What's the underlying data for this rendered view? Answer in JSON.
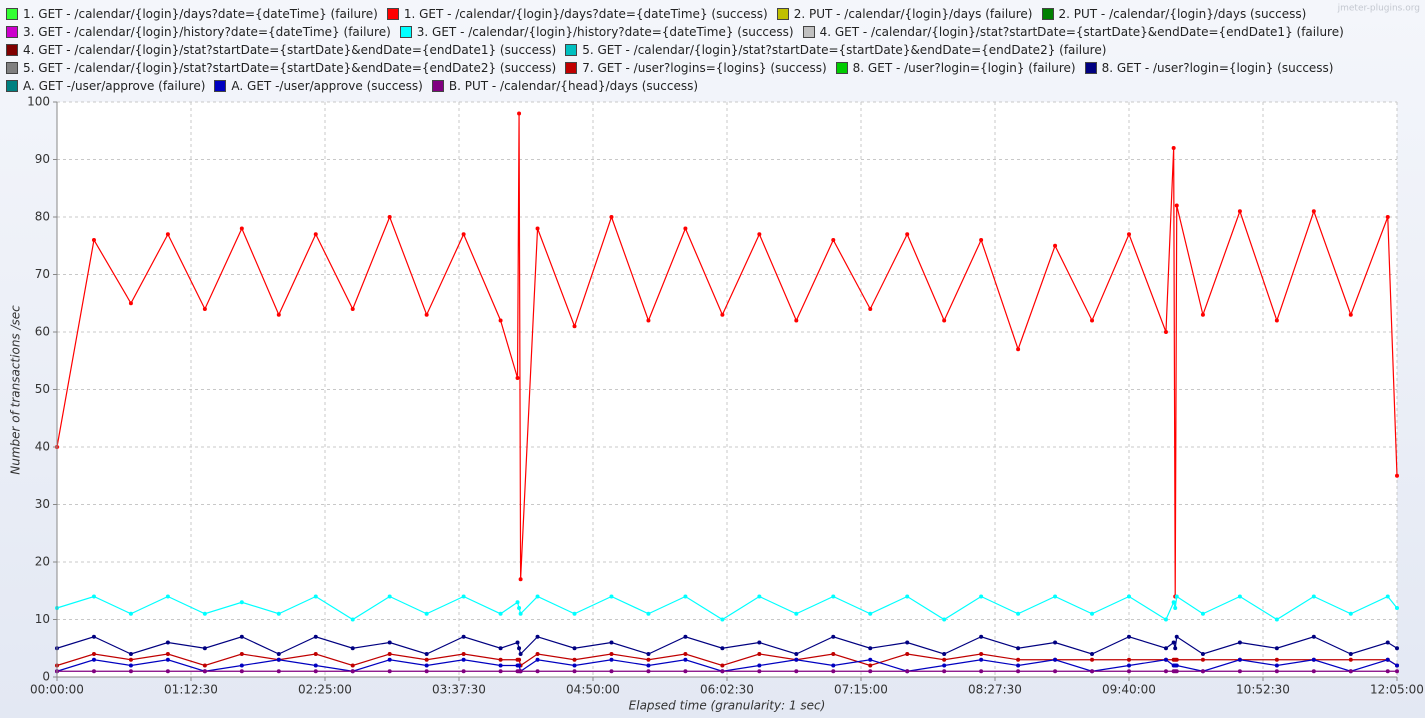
{
  "chart_data": {
    "type": "line",
    "watermark": "jmeter-plugins.org",
    "xlabel": "Elapsed time (granularity: 1 sec)",
    "ylabel": "Number of transactions /sec",
    "xlim": [
      0,
      43500
    ],
    "xticks": [
      {
        "value": 0,
        "label": "00:00:00"
      },
      {
        "value": 4350,
        "label": "01:12:30"
      },
      {
        "value": 8700,
        "label": "02:25:00"
      },
      {
        "value": 13050,
        "label": "03:37:30"
      },
      {
        "value": 17400,
        "label": "04:50:00"
      },
      {
        "value": 21750,
        "label": "06:02:30"
      },
      {
        "value": 26100,
        "label": "07:15:00"
      },
      {
        "value": 30450,
        "label": "08:27:30"
      },
      {
        "value": 34800,
        "label": "09:40:00"
      },
      {
        "value": 39150,
        "label": "10:52:30"
      },
      {
        "value": 43500,
        "label": "12:05:00"
      }
    ],
    "ylim": [
      0,
      100
    ],
    "yticks": [
      0,
      10,
      20,
      30,
      40,
      50,
      60,
      70,
      80,
      90,
      100
    ],
    "grid": true,
    "x": [
      0,
      1200,
      2400,
      3600,
      4800,
      6000,
      7200,
      8400,
      9600,
      10800,
      12000,
      13200,
      14400,
      14950,
      15000,
      15050,
      15600,
      16800,
      18000,
      19200,
      20400,
      21600,
      22800,
      24000,
      25200,
      26400,
      27600,
      28800,
      30000,
      31200,
      32400,
      33600,
      34800,
      36000,
      36250,
      36300,
      36350,
      37200,
      38400,
      39600,
      40800,
      42000,
      43200,
      43500
    ],
    "series": [
      {
        "name": "1. GET - /calendar/{login}/days?date={dateTime} (failure)",
        "color": "#33ff33",
        "values": [
          null,
          null,
          null,
          null,
          null,
          null,
          null,
          null,
          null,
          null,
          null,
          null,
          null,
          null,
          null,
          null,
          null,
          null,
          null,
          null,
          null,
          null,
          null,
          null,
          null,
          null,
          null,
          null,
          null,
          null,
          null,
          null,
          null,
          null,
          null,
          null,
          null,
          null,
          null,
          null,
          null,
          null,
          null,
          null
        ]
      },
      {
        "name": "1. GET - /calendar/{login}/days?date={dateTime} (success)",
        "color": "#ff0000",
        "values": [
          40,
          76,
          65,
          77,
          64,
          78,
          63,
          77,
          64,
          80,
          63,
          77,
          62,
          52,
          98,
          17,
          78,
          61,
          80,
          62,
          78,
          63,
          77,
          62,
          76,
          64,
          77,
          62,
          76,
          57,
          75,
          62,
          77,
          60,
          92,
          14,
          82,
          63,
          81,
          62,
          81,
          63,
          80,
          35
        ]
      },
      {
        "name": "2. PUT - /calendar/{login}/days (failure)",
        "color": "#bfbf00",
        "values": [
          null,
          null,
          null,
          null,
          null,
          null,
          null,
          null,
          null,
          null,
          null,
          null,
          null,
          null,
          null,
          null,
          null,
          null,
          null,
          null,
          null,
          null,
          null,
          null,
          null,
          null,
          null,
          null,
          null,
          null,
          null,
          null,
          null,
          null,
          null,
          null,
          null,
          null,
          null,
          null,
          null,
          null,
          null,
          null
        ]
      },
      {
        "name": "2. PUT - /calendar/{login}/days (success)",
        "color": "#007f00",
        "values": [
          null,
          null,
          null,
          null,
          null,
          null,
          null,
          null,
          null,
          null,
          null,
          null,
          null,
          null,
          null,
          null,
          null,
          null,
          null,
          null,
          null,
          null,
          null,
          null,
          null,
          null,
          null,
          null,
          null,
          null,
          null,
          null,
          null,
          null,
          null,
          null,
          null,
          null,
          null,
          null,
          null,
          null,
          null,
          null
        ]
      },
      {
        "name": "3. GET - /calendar/{login}/history?date={dateTime} (failure)",
        "color": "#cc00cc",
        "values": [
          null,
          null,
          null,
          null,
          null,
          null,
          null,
          null,
          null,
          null,
          null,
          null,
          null,
          null,
          null,
          null,
          null,
          null,
          null,
          null,
          null,
          null,
          null,
          null,
          null,
          null,
          null,
          null,
          null,
          null,
          null,
          null,
          null,
          null,
          null,
          null,
          null,
          null,
          null,
          null,
          null,
          null,
          null,
          null
        ]
      },
      {
        "name": "3. GET - /calendar/{login}/history?date={dateTime} (success)",
        "color": "#00ffff",
        "values": [
          12,
          14,
          11,
          14,
          11,
          13,
          11,
          14,
          10,
          14,
          11,
          14,
          11,
          13,
          12,
          11,
          14,
          11,
          14,
          11,
          14,
          10,
          14,
          11,
          14,
          11,
          14,
          10,
          14,
          11,
          14,
          11,
          14,
          10,
          13,
          12,
          14,
          11,
          14,
          10,
          14,
          11,
          14,
          12
        ]
      },
      {
        "name": "4. GET - /calendar/{login}/stat?startDate={startDate}&endDate={endDate1} (failure)",
        "color": "#c0c0c0",
        "values": [
          null,
          null,
          null,
          null,
          null,
          null,
          null,
          null,
          null,
          null,
          null,
          null,
          null,
          null,
          null,
          null,
          null,
          null,
          null,
          null,
          null,
          null,
          null,
          null,
          null,
          null,
          null,
          null,
          null,
          null,
          null,
          null,
          null,
          null,
          null,
          null,
          null,
          null,
          null,
          null,
          null,
          null,
          null,
          null
        ]
      },
      {
        "name": "4. GET - /calendar/{login}/stat?startDate={startDate}&endDate={endDate1} (success)",
        "color": "#800000",
        "values": [
          null,
          null,
          null,
          null,
          null,
          null,
          null,
          null,
          null,
          null,
          null,
          null,
          null,
          null,
          null,
          null,
          null,
          null,
          null,
          null,
          null,
          null,
          null,
          null,
          null,
          null,
          null,
          null,
          null,
          null,
          null,
          null,
          null,
          null,
          null,
          null,
          null,
          null,
          null,
          null,
          null,
          null,
          null,
          null
        ]
      },
      {
        "name": "5. GET - /calendar/{login}/stat?startDate={startDate}&endDate={endDate2} (failure)",
        "color": "#00c0c0",
        "values": [
          null,
          null,
          null,
          null,
          null,
          null,
          null,
          null,
          null,
          null,
          null,
          null,
          null,
          null,
          null,
          null,
          null,
          null,
          null,
          null,
          null,
          null,
          null,
          null,
          null,
          null,
          null,
          null,
          null,
          null,
          null,
          null,
          null,
          null,
          null,
          null,
          null,
          null,
          null,
          null,
          null,
          null,
          null,
          null
        ]
      },
      {
        "name": "5. GET - /calendar/{login}/stat?startDate={startDate}&endDate={endDate2} (success)",
        "color": "#808080",
        "values": [
          null,
          null,
          null,
          null,
          null,
          null,
          null,
          null,
          null,
          null,
          null,
          null,
          null,
          null,
          null,
          null,
          null,
          null,
          null,
          null,
          null,
          null,
          null,
          null,
          null,
          null,
          null,
          null,
          null,
          null,
          null,
          null,
          null,
          null,
          null,
          null,
          null,
          null,
          null,
          null,
          null,
          null,
          null,
          null
        ]
      },
      {
        "name": "7. GET - /user?logins={logins} (success)",
        "color": "#c00000",
        "values": [
          2,
          4,
          3,
          4,
          2,
          4,
          3,
          4,
          2,
          4,
          3,
          4,
          3,
          3,
          3,
          2,
          4,
          3,
          4,
          3,
          4,
          2,
          4,
          3,
          4,
          2,
          4,
          3,
          4,
          3,
          3,
          3,
          3,
          3,
          3,
          3,
          3,
          3,
          3,
          3,
          3,
          3,
          3,
          2
        ]
      },
      {
        "name": "8. GET - /user?login={login} (failure)",
        "color": "#00cc00",
        "values": [
          null,
          null,
          null,
          null,
          null,
          null,
          null,
          null,
          null,
          null,
          null,
          null,
          null,
          null,
          null,
          null,
          null,
          null,
          null,
          null,
          null,
          null,
          null,
          null,
          null,
          null,
          null,
          null,
          null,
          null,
          null,
          null,
          null,
          null,
          null,
          null,
          null,
          null,
          null,
          null,
          null,
          null,
          null,
          null
        ]
      },
      {
        "name": "8. GET - /user?login={login} (success)",
        "color": "#000080",
        "values": [
          5,
          7,
          4,
          6,
          5,
          7,
          4,
          7,
          5,
          6,
          4,
          7,
          5,
          6,
          5,
          4,
          7,
          5,
          6,
          4,
          7,
          5,
          6,
          4,
          7,
          5,
          6,
          4,
          7,
          5,
          6,
          4,
          7,
          5,
          6,
          5,
          7,
          4,
          6,
          5,
          7,
          4,
          6,
          5
        ]
      },
      {
        "name": "A. GET -/user/approve (failure)",
        "color": "#008080",
        "values": [
          null,
          null,
          null,
          null,
          null,
          null,
          null,
          null,
          null,
          null,
          null,
          null,
          null,
          null,
          null,
          null,
          null,
          null,
          null,
          null,
          null,
          null,
          null,
          null,
          null,
          null,
          null,
          null,
          null,
          null,
          null,
          null,
          null,
          null,
          null,
          null,
          null,
          null,
          null,
          null,
          null,
          null,
          null,
          null
        ]
      },
      {
        "name": "A. GET -/user/approve (success)",
        "color": "#0000c0",
        "values": [
          1,
          3,
          2,
          3,
          1,
          2,
          3,
          2,
          1,
          3,
          2,
          3,
          2,
          2,
          2,
          1,
          3,
          2,
          3,
          2,
          3,
          1,
          2,
          3,
          2,
          3,
          1,
          2,
          3,
          2,
          3,
          1,
          2,
          3,
          2,
          2,
          2,
          1,
          3,
          2,
          3,
          1,
          3,
          2
        ]
      },
      {
        "name": "B. PUT - /calendar/{head}/days (success)",
        "color": "#800080",
        "values": [
          1,
          1,
          1,
          1,
          1,
          1,
          1,
          1,
          1,
          1,
          1,
          1,
          1,
          1,
          1,
          1,
          1,
          1,
          1,
          1,
          1,
          1,
          1,
          1,
          1,
          1,
          1,
          1,
          1,
          1,
          1,
          1,
          1,
          1,
          1,
          1,
          1,
          1,
          1,
          1,
          1,
          1,
          1,
          1
        ]
      }
    ]
  }
}
